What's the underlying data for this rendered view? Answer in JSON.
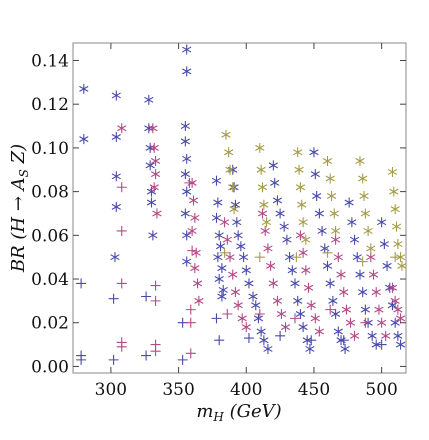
{
  "chart_data": {
    "type": "scatter",
    "title": "",
    "xlabel_main": "m",
    "xlabel_sub": "H",
    "xlabel_rest": " (GeV)",
    "ylabel_main": "BR (H → A",
    "ylabel_sub": "S",
    "ylabel_rest": " Z)",
    "xlim": [
      272,
      518
    ],
    "ylim": [
      -0.003,
      0.148
    ],
    "xticks": [
      "300",
      "350",
      "400",
      "450",
      "500"
    ],
    "xtick_values": [
      300,
      350,
      400,
      450,
      500
    ],
    "yticks": [
      "0.00",
      "0.02",
      "0.04",
      "0.06",
      "0.08",
      "0.10",
      "0.12",
      "0.14"
    ],
    "ytick_values": [
      0.0,
      0.02,
      0.04,
      0.06,
      0.08,
      0.1,
      0.12,
      0.14
    ],
    "grid": false,
    "series": [
      {
        "color": "#4a4aab",
        "marker": "asterisk",
        "points": [
          [
            280,
            0.127
          ],
          [
            280,
            0.104
          ],
          [
            304,
            0.124
          ],
          [
            304,
            0.105
          ],
          [
            304,
            0.087
          ],
          [
            304,
            0.073
          ],
          [
            303,
            0.05
          ],
          [
            328,
            0.122
          ],
          [
            328,
            0.109
          ],
          [
            329,
            0.1
          ],
          [
            329,
            0.092
          ],
          [
            330,
            0.08
          ],
          [
            330,
            0.075
          ],
          [
            331,
            0.06
          ],
          [
            356,
            0.145
          ],
          [
            356,
            0.135
          ],
          [
            355,
            0.11
          ],
          [
            355,
            0.103
          ],
          [
            356,
            0.095
          ],
          [
            355,
            0.088
          ],
          [
            356,
            0.08
          ],
          [
            355,
            0.07
          ],
          [
            356,
            0.06
          ],
          [
            356,
            0.048
          ],
          [
            378,
            0.085
          ],
          [
            379,
            0.075
          ],
          [
            378,
            0.068
          ],
          [
            380,
            0.06
          ],
          [
            381,
            0.055
          ],
          [
            379,
            0.05
          ],
          [
            382,
            0.045
          ],
          [
            380,
            0.04
          ],
          [
            383,
            0.035
          ],
          [
            382,
            0.032
          ],
          [
            390,
            0.09
          ],
          [
            391,
            0.082
          ],
          [
            392,
            0.074
          ],
          [
            393,
            0.066
          ],
          [
            394,
            0.06
          ],
          [
            396,
            0.055
          ],
          [
            398,
            0.05
          ],
          [
            400,
            0.044
          ],
          [
            402,
            0.038
          ],
          [
            405,
            0.032
          ],
          [
            407,
            0.028
          ],
          [
            409,
            0.022
          ],
          [
            411,
            0.016
          ],
          [
            413,
            0.012
          ],
          [
            416,
            0.008
          ],
          [
            420,
            0.092
          ],
          [
            421,
            0.084
          ],
          [
            423,
            0.076
          ],
          [
            425,
            0.07
          ],
          [
            428,
            0.064
          ],
          [
            430,
            0.058
          ],
          [
            432,
            0.05
          ],
          [
            434,
            0.044
          ],
          [
            436,
            0.038
          ],
          [
            438,
            0.03
          ],
          [
            440,
            0.024
          ],
          [
            442,
            0.018
          ],
          [
            445,
            0.012
          ],
          [
            447,
            0.008
          ],
          [
            450,
            0.098
          ],
          [
            451,
            0.088
          ],
          [
            452,
            0.078
          ],
          [
            454,
            0.07
          ],
          [
            456,
            0.062
          ],
          [
            458,
            0.054
          ],
          [
            460,
            0.046
          ],
          [
            462,
            0.038
          ],
          [
            464,
            0.03
          ],
          [
            466,
            0.024
          ],
          [
            468,
            0.016
          ],
          [
            470,
            0.012
          ],
          [
            473,
            0.008
          ],
          [
            476,
            0.075
          ],
          [
            478,
            0.066
          ],
          [
            480,
            0.058
          ],
          [
            482,
            0.05
          ],
          [
            484,
            0.042
          ],
          [
            486,
            0.034
          ],
          [
            488,
            0.026
          ],
          [
            490,
            0.02
          ],
          [
            493,
            0.014
          ],
          [
            496,
            0.01
          ],
          [
            500,
            0.066
          ],
          [
            502,
            0.056
          ],
          [
            504,
            0.046
          ],
          [
            506,
            0.036
          ],
          [
            508,
            0.028
          ],
          [
            510,
            0.02
          ],
          [
            512,
            0.014
          ],
          [
            514,
            0.01
          ]
        ]
      },
      {
        "color": "#b34a86",
        "marker": "asterisk",
        "points": [
          [
            308,
            0.109
          ],
          [
            331,
            0.109
          ],
          [
            332,
            0.1
          ],
          [
            333,
            0.094
          ],
          [
            333,
            0.088
          ],
          [
            332,
            0.082
          ],
          [
            334,
            0.07
          ],
          [
            360,
            0.084
          ],
          [
            361,
            0.076
          ],
          [
            362,
            0.068
          ],
          [
            360,
            0.062
          ],
          [
            363,
            0.052
          ],
          [
            362,
            0.045
          ],
          [
            364,
            0.038
          ],
          [
            365,
            0.03
          ],
          [
            384,
            0.066
          ],
          [
            386,
            0.058
          ],
          [
            388,
            0.05
          ],
          [
            390,
            0.042
          ],
          [
            392,
            0.034
          ],
          [
            394,
            0.028
          ],
          [
            397,
            0.022
          ],
          [
            400,
            0.018
          ],
          [
            412,
            0.07
          ],
          [
            414,
            0.062
          ],
          [
            416,
            0.054
          ],
          [
            418,
            0.046
          ],
          [
            420,
            0.038
          ],
          [
            423,
            0.03
          ],
          [
            426,
            0.024
          ],
          [
            429,
            0.018
          ],
          [
            440,
            0.06
          ],
          [
            442,
            0.052
          ],
          [
            444,
            0.044
          ],
          [
            446,
            0.036
          ],
          [
            448,
            0.028
          ],
          [
            451,
            0.022
          ],
          [
            454,
            0.016
          ],
          [
            466,
            0.058
          ],
          [
            468,
            0.05
          ],
          [
            470,
            0.042
          ],
          [
            472,
            0.034
          ],
          [
            474,
            0.026
          ],
          [
            477,
            0.02
          ],
          [
            480,
            0.014
          ],
          [
            492,
            0.05
          ],
          [
            494,
            0.042
          ],
          [
            496,
            0.034
          ],
          [
            498,
            0.026
          ],
          [
            500,
            0.02
          ],
          [
            503,
            0.014
          ],
          [
            508,
            0.036
          ],
          [
            510,
            0.03
          ],
          [
            512,
            0.026
          ],
          [
            514,
            0.022
          ]
        ]
      },
      {
        "color": "#a49c48",
        "marker": "asterisk",
        "points": [
          [
            385,
            0.106
          ],
          [
            387,
            0.098
          ],
          [
            388,
            0.09
          ],
          [
            390,
            0.082
          ],
          [
            391,
            0.072
          ],
          [
            410,
            0.1
          ],
          [
            411,
            0.09
          ],
          [
            412,
            0.082
          ],
          [
            413,
            0.074
          ],
          [
            415,
            0.066
          ],
          [
            438,
            0.098
          ],
          [
            439,
            0.09
          ],
          [
            440,
            0.082
          ],
          [
            441,
            0.074
          ],
          [
            442,
            0.066
          ],
          [
            444,
            0.058
          ],
          [
            460,
            0.094
          ],
          [
            462,
            0.086
          ],
          [
            463,
            0.078
          ],
          [
            465,
            0.07
          ],
          [
            466,
            0.062
          ],
          [
            484,
            0.094
          ],
          [
            486,
            0.086
          ],
          [
            487,
            0.078
          ],
          [
            488,
            0.07
          ],
          [
            490,
            0.062
          ],
          [
            492,
            0.054
          ],
          [
            508,
            0.089
          ],
          [
            509,
            0.08
          ],
          [
            510,
            0.072
          ],
          [
            511,
            0.064
          ],
          [
            512,
            0.056
          ],
          [
            514,
            0.05
          ],
          [
            515,
            0.046
          ]
        ]
      },
      {
        "color": "#4a4aab",
        "marker": "plus",
        "points": [
          [
            278,
            0.038
          ],
          [
            278,
            0.005
          ],
          [
            278,
            0.003
          ],
          [
            302,
            0.031
          ],
          [
            302,
            0.003
          ],
          [
            326,
            0.032
          ],
          [
            326,
            0.005
          ],
          [
            353,
            0.02
          ],
          [
            353,
            0.003
          ],
          [
            378,
            0.022
          ],
          [
            380,
            0.012
          ],
          [
            402,
            0.013
          ],
          [
            425,
            0.014
          ],
          [
            448,
            0.012
          ],
          [
            472,
            0.012
          ],
          [
            500,
            0.01
          ]
        ]
      },
      {
        "color": "#b34a86",
        "marker": "plus",
        "points": [
          [
            308,
            0.082
          ],
          [
            308,
            0.062
          ],
          [
            308,
            0.038
          ],
          [
            308,
            0.011
          ],
          [
            308,
            0.009
          ],
          [
            333,
            0.037
          ],
          [
            333,
            0.03
          ],
          [
            333,
            0.01
          ],
          [
            333,
            0.007
          ],
          [
            359,
            0.026
          ],
          [
            359,
            0.02
          ],
          [
            359,
            0.006
          ],
          [
            360,
            0.053
          ],
          [
            358,
            0.084
          ],
          [
            386,
            0.024
          ],
          [
            410,
            0.024
          ],
          [
            436,
            0.022
          ],
          [
            462,
            0.026
          ],
          [
            488,
            0.02
          ]
        ]
      },
      {
        "color": "#a49c48",
        "marker": "plus",
        "points": [
          [
            384,
            0.052
          ],
          [
            410,
            0.05
          ],
          [
            437,
            0.05
          ],
          [
            460,
            0.052
          ],
          [
            486,
            0.048
          ],
          [
            510,
            0.05
          ]
        ]
      }
    ]
  }
}
